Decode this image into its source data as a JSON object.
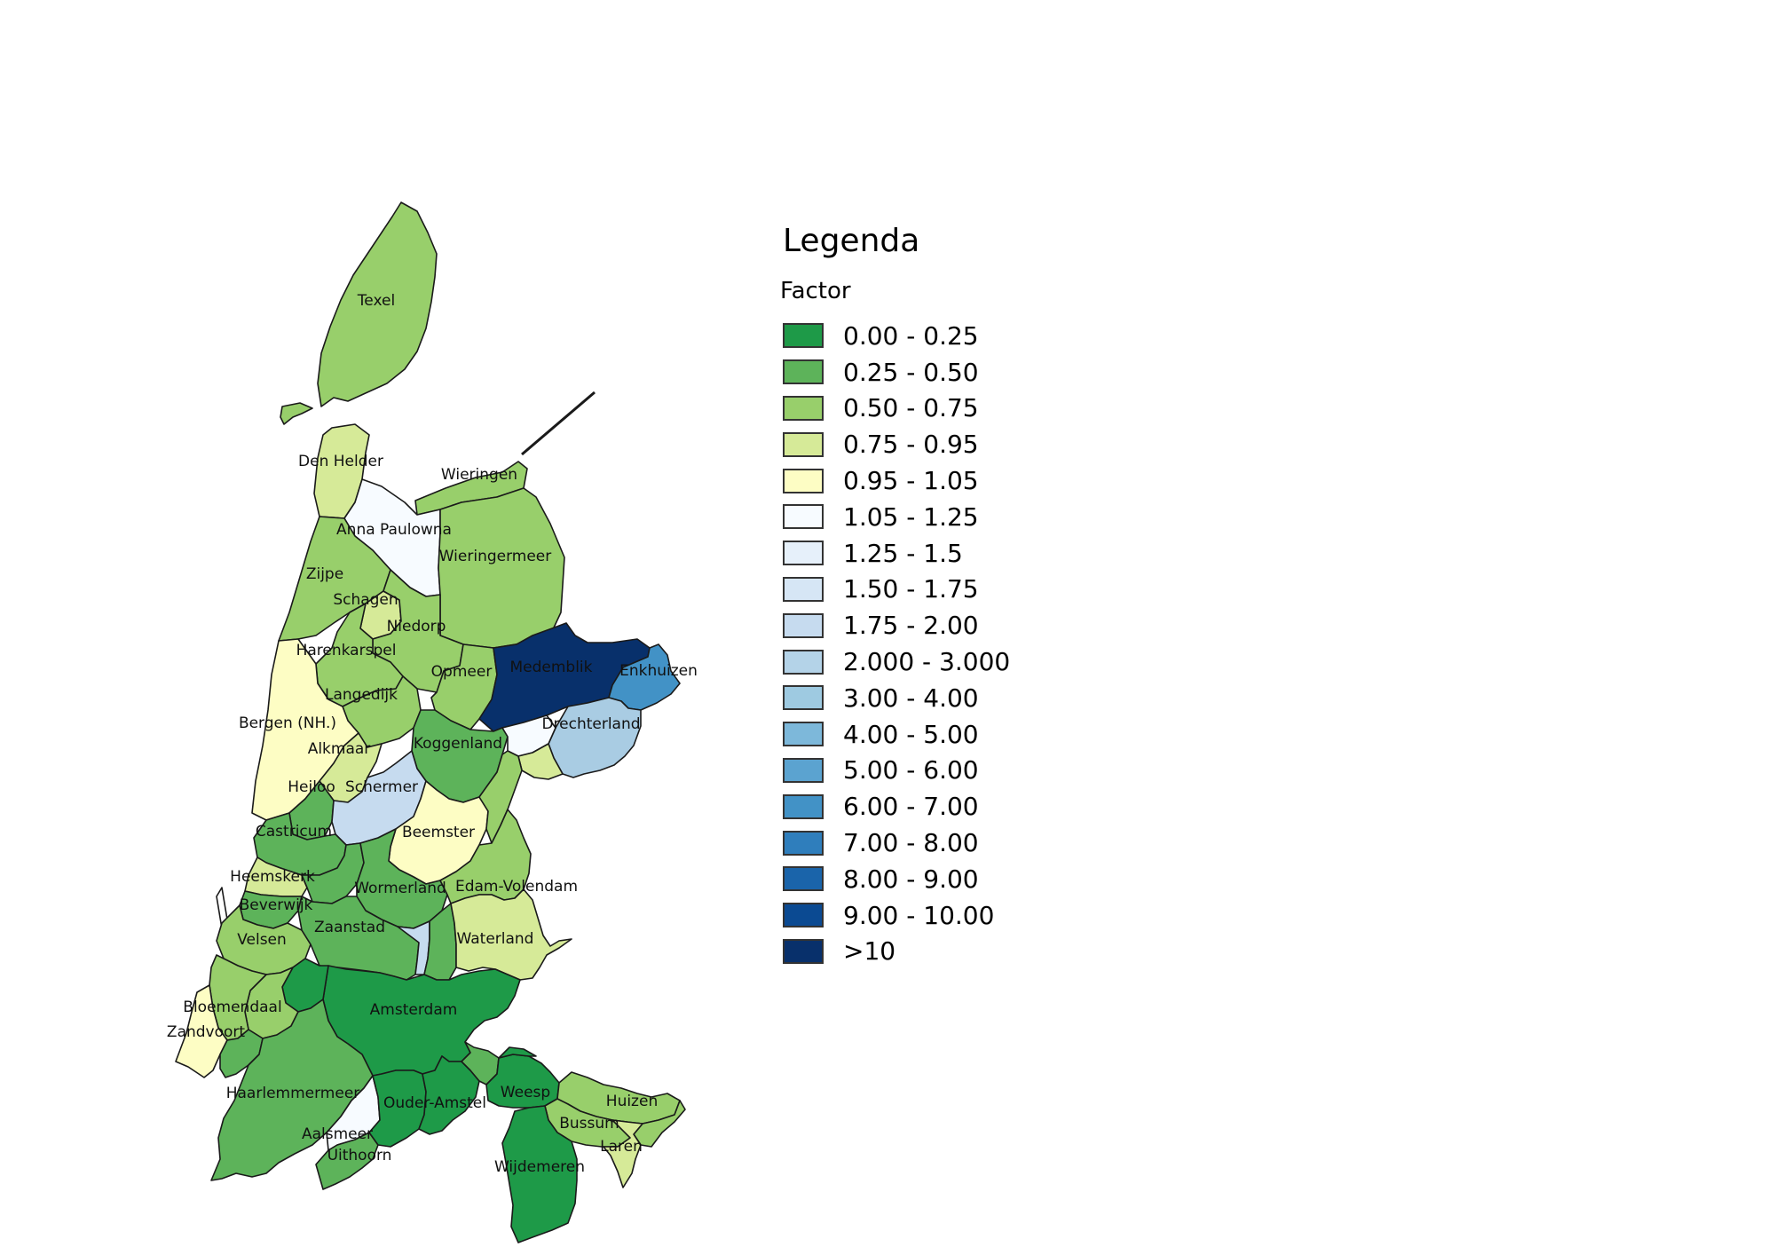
{
  "map": {
    "regions": [
      {
        "name": "Texel",
        "color": "#98cf6b"
      },
      {
        "name": "Den Helder",
        "color": "#d6ea98"
      },
      {
        "name": "Wieringen",
        "color": "#98cf6b"
      },
      {
        "name": "Anna Paulowna",
        "color": "#f7fbff"
      },
      {
        "name": "Wieringermeer",
        "color": "#98cf6b"
      },
      {
        "name": "Zijpe",
        "color": "#98cf6b"
      },
      {
        "name": "Schagen",
        "color": "#d6ea98"
      },
      {
        "name": "Niedorp",
        "color": "#98cf6b"
      },
      {
        "name": "Harenkarspel",
        "color": "#98cf6b"
      },
      {
        "name": "Opmeer",
        "color": "#98cf6b"
      },
      {
        "name": "Medemblik",
        "color": "#08306b"
      },
      {
        "name": "Enkhuizen",
        "color": "#4292c6"
      },
      {
        "name": "Langedijk",
        "color": "#98cf6b"
      },
      {
        "name": "Bergen (NH.)",
        "color": "#fdfdc4"
      },
      {
        "name": "Alkmaar",
        "color": "#d6ea98"
      },
      {
        "name": "Drechterland",
        "color": "#a9cce3"
      },
      {
        "name": "Koggenland",
        "color": "#5db35a"
      },
      {
        "name": "Heiloo",
        "color": "#5db35a"
      },
      {
        "name": "Schermer",
        "color": "#c6dbef"
      },
      {
        "name": "Beemster",
        "color": "#fdfdc4"
      },
      {
        "name": "Castricum",
        "color": "#5db35a"
      },
      {
        "name": "Heemskerk",
        "color": "#d6ea98"
      },
      {
        "name": "Wormerland",
        "color": "#5db35a"
      },
      {
        "name": "Edam-Volendam",
        "color": "#98cf6b"
      },
      {
        "name": "Beverwijk",
        "color": "#5db35a"
      },
      {
        "name": "Velsen",
        "color": "#98cf6b"
      },
      {
        "name": "Zaanstad",
        "color": "#5db35a"
      },
      {
        "name": "Waterland",
        "color": "#d6ea98"
      },
      {
        "name": "Amsterdam",
        "color": "#1e9a48"
      },
      {
        "name": "Bloemendaal",
        "color": "#98cf6b"
      },
      {
        "name": "Zandvoort",
        "color": "#fdfdc4"
      },
      {
        "name": "Haarlemmermeer",
        "color": "#5db35a"
      },
      {
        "name": "Ouder-Amstel",
        "color": "#1e9a48"
      },
      {
        "name": "Weesp",
        "color": "#1e9a48"
      },
      {
        "name": "Huizen",
        "color": "#98cf6b"
      },
      {
        "name": "Bussum",
        "color": "#98cf6b"
      },
      {
        "name": "Aalsmeer",
        "color": "#f7fbff"
      },
      {
        "name": "Uithoorn",
        "color": "#5db35a"
      },
      {
        "name": "Laren",
        "color": "#d6ea98"
      },
      {
        "name": "Wijdemeren",
        "color": "#1e9a48"
      }
    ]
  },
  "legend": {
    "title": "Legenda",
    "subtitle": "Factor",
    "items": [
      {
        "label": "0.00 - 0.25",
        "color": "#1e9a48"
      },
      {
        "label": "0.25 - 0.50",
        "color": "#5db35a"
      },
      {
        "label": "0.50 - 0.75",
        "color": "#98cf6b"
      },
      {
        "label": "0.75 - 0.95",
        "color": "#d6ea98"
      },
      {
        "label": "0.95 - 1.05",
        "color": "#fdfdc4"
      },
      {
        "label": "1.05 - 1.25",
        "color": "#f7fbff"
      },
      {
        "label": "1.25 - 1.5",
        "color": "#e6f0fa"
      },
      {
        "label": "1.50 - 1.75",
        "color": "#d6e6f5"
      },
      {
        "label": "1.75 - 2.00",
        "color": "#c6dbef"
      },
      {
        "label": "2.000 - 3.000",
        "color": "#b4d3e8"
      },
      {
        "label": "3.00 - 4.00",
        "color": "#9ecae1"
      },
      {
        "label": "4.00 - 5.00",
        "color": "#7db8da"
      },
      {
        "label": "5.00 - 6.00",
        "color": "#5ba3d0"
      },
      {
        "label": "6.00 - 7.00",
        "color": "#4292c6"
      },
      {
        "label": "7.00 - 8.00",
        "color": "#2f7ebc"
      },
      {
        "label": "8.00 - 9.00",
        "color": "#1a64aa"
      },
      {
        "label": "9.00 - 10.00",
        "color": "#0b4a92"
      },
      {
        "label": ">10",
        "color": "#08306b"
      }
    ]
  }
}
